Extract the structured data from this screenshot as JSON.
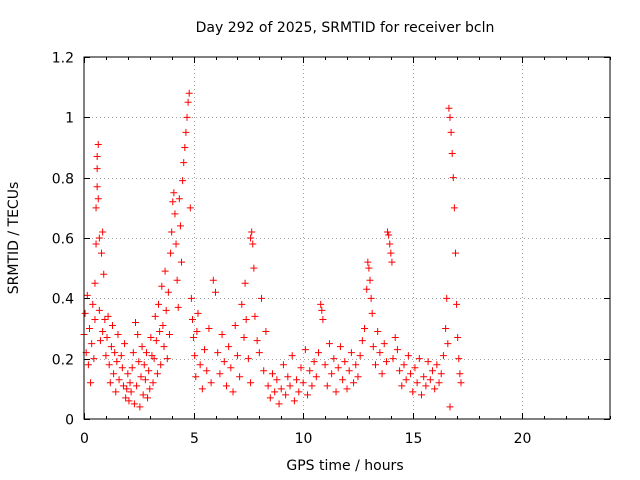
{
  "chart_data": {
    "type": "scatter",
    "title": "Day 292 of 2025, SRMTID for receiver bcln",
    "xlabel": "GPS time / hours",
    "ylabel": "SRMTID / TECUs",
    "xlim": [
      0,
      24
    ],
    "ylim": [
      0,
      1.2
    ],
    "xticks": [
      0,
      5,
      10,
      15,
      20
    ],
    "xtick_labels": [
      "0",
      "5",
      "10",
      "15",
      "20"
    ],
    "yticks": [
      0,
      0.2,
      0.4,
      0.6,
      0.8,
      1.0,
      1.2
    ],
    "ytick_labels": [
      "0",
      "0.2",
      "0.4",
      "0.6",
      "0.8",
      "1",
      "1.2"
    ],
    "grid": true,
    "marker": "+",
    "color": "#ff0000",
    "series": [
      {
        "name": "SRMTID",
        "points": [
          [
            0.0,
            0.28
          ],
          [
            0.05,
            0.35
          ],
          [
            0.1,
            0.22
          ],
          [
            0.15,
            0.41
          ],
          [
            0.2,
            0.18
          ],
          [
            0.25,
            0.3
          ],
          [
            0.3,
            0.12
          ],
          [
            0.35,
            0.25
          ],
          [
            0.4,
            0.38
          ],
          [
            0.45,
            0.2
          ],
          [
            0.5,
            0.33
          ],
          [
            0.5,
            0.45
          ],
          [
            0.55,
            0.58
          ],
          [
            0.55,
            0.7
          ],
          [
            0.6,
            0.77
          ],
          [
            0.6,
            0.83
          ],
          [
            0.6,
            0.87
          ],
          [
            0.65,
            0.91
          ],
          [
            0.65,
            0.73
          ],
          [
            0.7,
            0.6
          ],
          [
            0.7,
            0.36
          ],
          [
            0.75,
            0.26
          ],
          [
            0.8,
            0.55
          ],
          [
            0.85,
            0.62
          ],
          [
            0.85,
            0.29
          ],
          [
            0.9,
            0.48
          ],
          [
            0.95,
            0.33
          ],
          [
            1.0,
            0.21
          ],
          [
            1.05,
            0.27
          ],
          [
            1.1,
            0.34
          ],
          [
            1.15,
            0.18
          ],
          [
            1.2,
            0.12
          ],
          [
            1.25,
            0.24
          ],
          [
            1.3,
            0.31
          ],
          [
            1.35,
            0.15
          ],
          [
            1.4,
            0.22
          ],
          [
            1.45,
            0.09
          ],
          [
            1.5,
            0.19
          ],
          [
            1.55,
            0.28
          ],
          [
            1.6,
            0.13
          ],
          [
            1.7,
            0.21
          ],
          [
            1.75,
            0.17
          ],
          [
            1.8,
            0.11
          ],
          [
            1.85,
            0.25
          ],
          [
            1.9,
            0.07
          ],
          [
            1.95,
            0.1
          ],
          [
            2.0,
            0.15
          ],
          [
            2.05,
            0.06
          ],
          [
            2.1,
            0.12
          ],
          [
            2.15,
            0.09
          ],
          [
            2.2,
            0.17
          ],
          [
            2.25,
            0.22
          ],
          [
            2.3,
            0.05
          ],
          [
            2.35,
            0.32
          ],
          [
            2.4,
            0.11
          ],
          [
            2.45,
            0.28
          ],
          [
            2.5,
            0.19
          ],
          [
            2.55,
            0.04
          ],
          [
            2.6,
            0.14
          ],
          [
            2.65,
            0.24
          ],
          [
            2.7,
            0.08
          ],
          [
            2.75,
            0.18
          ],
          [
            2.8,
            0.13
          ],
          [
            2.85,
            0.22
          ],
          [
            2.9,
            0.07
          ],
          [
            2.95,
            0.16
          ],
          [
            3.0,
            0.1
          ],
          [
            3.05,
            0.27
          ],
          [
            3.1,
            0.21
          ],
          [
            3.15,
            0.12
          ],
          [
            3.2,
            0.2
          ],
          [
            3.25,
            0.34
          ],
          [
            3.3,
            0.26
          ],
          [
            3.35,
            0.15
          ],
          [
            3.4,
            0.38
          ],
          [
            3.45,
            0.29
          ],
          [
            3.5,
            0.18
          ],
          [
            3.55,
            0.44
          ],
          [
            3.6,
            0.31
          ],
          [
            3.65,
            0.24
          ],
          [
            3.7,
            0.49
          ],
          [
            3.75,
            0.36
          ],
          [
            3.8,
            0.2
          ],
          [
            3.85,
            0.42
          ],
          [
            3.9,
            0.28
          ],
          [
            3.95,
            0.55
          ],
          [
            4.0,
            0.62
          ],
          [
            4.05,
            0.72
          ],
          [
            4.1,
            0.75
          ],
          [
            4.15,
            0.68
          ],
          [
            4.2,
            0.58
          ],
          [
            4.25,
            0.46
          ],
          [
            4.3,
            0.37
          ],
          [
            4.35,
            0.73
          ],
          [
            4.4,
            0.64
          ],
          [
            4.45,
            0.52
          ],
          [
            4.5,
            0.79
          ],
          [
            4.55,
            0.85
          ],
          [
            4.6,
            0.9
          ],
          [
            4.65,
            0.95
          ],
          [
            4.7,
            1.0
          ],
          [
            4.75,
            1.05
          ],
          [
            4.8,
            1.08
          ],
          [
            4.85,
            0.7
          ],
          [
            4.9,
            0.4
          ],
          [
            4.95,
            0.33
          ],
          [
            5.0,
            0.27
          ],
          [
            5.05,
            0.21
          ],
          [
            5.1,
            0.14
          ],
          [
            5.15,
            0.29
          ],
          [
            5.2,
            0.35
          ],
          [
            5.3,
            0.18
          ],
          [
            5.4,
            0.1
          ],
          [
            5.5,
            0.23
          ],
          [
            5.6,
            0.16
          ],
          [
            5.7,
            0.3
          ],
          [
            5.8,
            0.12
          ],
          [
            5.9,
            0.46
          ],
          [
            6.0,
            0.42
          ],
          [
            6.1,
            0.22
          ],
          [
            6.2,
            0.15
          ],
          [
            6.3,
            0.28
          ],
          [
            6.4,
            0.19
          ],
          [
            6.5,
            0.11
          ],
          [
            6.6,
            0.24
          ],
          [
            6.7,
            0.17
          ],
          [
            6.8,
            0.09
          ],
          [
            6.9,
            0.31
          ],
          [
            7.0,
            0.21
          ],
          [
            7.1,
            0.14
          ],
          [
            7.2,
            0.38
          ],
          [
            7.3,
            0.27
          ],
          [
            7.35,
            0.45
          ],
          [
            7.4,
            0.33
          ],
          [
            7.5,
            0.2
          ],
          [
            7.6,
            0.12
          ],
          [
            7.6,
            0.6
          ],
          [
            7.65,
            0.62
          ],
          [
            7.7,
            0.58
          ],
          [
            7.75,
            0.5
          ],
          [
            7.8,
            0.34
          ],
          [
            7.9,
            0.26
          ],
          [
            8.0,
            0.22
          ],
          [
            8.1,
            0.4
          ],
          [
            8.2,
            0.16
          ],
          [
            8.3,
            0.29
          ],
          [
            8.4,
            0.11
          ],
          [
            8.5,
            0.07
          ],
          [
            8.6,
            0.15
          ],
          [
            8.7,
            0.09
          ],
          [
            8.8,
            0.13
          ],
          [
            8.9,
            0.05
          ],
          [
            9.0,
            0.1
          ],
          [
            9.1,
            0.18
          ],
          [
            9.2,
            0.08
          ],
          [
            9.3,
            0.14
          ],
          [
            9.4,
            0.11
          ],
          [
            9.5,
            0.21
          ],
          [
            9.6,
            0.06
          ],
          [
            9.7,
            0.13
          ],
          [
            9.8,
            0.09
          ],
          [
            9.9,
            0.17
          ],
          [
            10.0,
            0.12
          ],
          [
            10.1,
            0.23
          ],
          [
            10.2,
            0.08
          ],
          [
            10.3,
            0.16
          ],
          [
            10.4,
            0.11
          ],
          [
            10.5,
            0.19
          ],
          [
            10.6,
            0.14
          ],
          [
            10.7,
            0.22
          ],
          [
            10.8,
            0.38
          ],
          [
            10.85,
            0.36
          ],
          [
            10.9,
            0.33
          ],
          [
            11.0,
            0.18
          ],
          [
            11.1,
            0.11
          ],
          [
            11.2,
            0.25
          ],
          [
            11.3,
            0.15
          ],
          [
            11.4,
            0.2
          ],
          [
            11.5,
            0.09
          ],
          [
            11.6,
            0.17
          ],
          [
            11.7,
            0.24
          ],
          [
            11.8,
            0.13
          ],
          [
            11.9,
            0.19
          ],
          [
            12.0,
            0.1
          ],
          [
            12.1,
            0.16
          ],
          [
            12.2,
            0.22
          ],
          [
            12.3,
            0.12
          ],
          [
            12.4,
            0.18
          ],
          [
            12.5,
            0.14
          ],
          [
            12.6,
            0.21
          ],
          [
            12.7,
            0.26
          ],
          [
            12.8,
            0.3
          ],
          [
            12.9,
            0.43
          ],
          [
            12.95,
            0.52
          ],
          [
            13.0,
            0.5
          ],
          [
            13.05,
            0.46
          ],
          [
            13.1,
            0.4
          ],
          [
            13.15,
            0.35
          ],
          [
            13.2,
            0.24
          ],
          [
            13.3,
            0.18
          ],
          [
            13.4,
            0.29
          ],
          [
            13.5,
            0.22
          ],
          [
            13.6,
            0.15
          ],
          [
            13.7,
            0.25
          ],
          [
            13.8,
            0.19
          ],
          [
            13.85,
            0.62
          ],
          [
            13.9,
            0.61
          ],
          [
            13.95,
            0.58
          ],
          [
            14.0,
            0.55
          ],
          [
            14.05,
            0.52
          ],
          [
            14.1,
            0.2
          ],
          [
            14.2,
            0.27
          ],
          [
            14.3,
            0.23
          ],
          [
            14.4,
            0.16
          ],
          [
            14.5,
            0.11
          ],
          [
            14.6,
            0.18
          ],
          [
            14.7,
            0.13
          ],
          [
            14.8,
            0.21
          ],
          [
            14.9,
            0.15
          ],
          [
            15.0,
            0.09
          ],
          [
            15.1,
            0.17
          ],
          [
            15.2,
            0.12
          ],
          [
            15.3,
            0.2
          ],
          [
            15.4,
            0.08
          ],
          [
            15.5,
            0.14
          ],
          [
            15.6,
            0.11
          ],
          [
            15.7,
            0.19
          ],
          [
            15.8,
            0.13
          ],
          [
            15.9,
            0.16
          ],
          [
            16.0,
            0.1
          ],
          [
            16.1,
            0.18
          ],
          [
            16.2,
            0.12
          ],
          [
            16.3,
            0.15
          ],
          [
            16.4,
            0.21
          ],
          [
            16.5,
            0.3
          ],
          [
            16.55,
            0.4
          ],
          [
            16.6,
            0.25
          ],
          [
            16.65,
            1.03
          ],
          [
            16.7,
            1.0
          ],
          [
            16.75,
            0.95
          ],
          [
            16.8,
            0.88
          ],
          [
            16.85,
            0.8
          ],
          [
            16.9,
            0.7
          ],
          [
            16.95,
            0.55
          ],
          [
            17.0,
            0.38
          ],
          [
            17.05,
            0.27
          ],
          [
            17.1,
            0.2
          ],
          [
            17.15,
            0.15
          ],
          [
            17.2,
            0.12
          ],
          [
            16.7,
            0.04
          ]
        ]
      }
    ]
  }
}
